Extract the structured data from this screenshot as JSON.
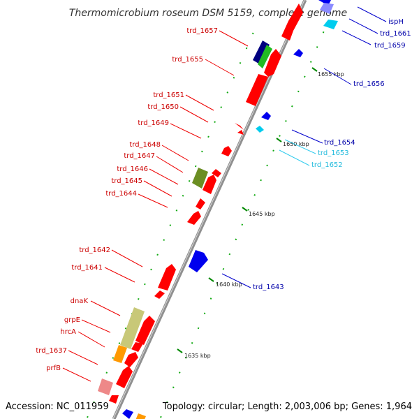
{
  "title": "Thermomicrobium roseum DSM 5159, complete genome",
  "footer": {
    "accession": "Accession: NC_011959",
    "summary": "Topology: circular; Length: 2,003,006 bp; Genes: 1,964"
  },
  "colors": {
    "background": "#ffffff",
    "backbone": "#909090",
    "forward_gene": "#ff0000",
    "reverse_gene": "#0000ee",
    "reverse_gene_light": "#00ccee",
    "label_forward": "#cc0000",
    "label_reverse": "#0000aa",
    "label_reverse_light": "#22bbdd",
    "tick_mark": "#008800",
    "olive_feature": "#6b8e23",
    "khaki_feature": "#c8c878",
    "orange_feature": "#ff9900",
    "pink_feature": "#ee8888",
    "navy_feature": "#000080",
    "green_feature": "#22bb22"
  },
  "scale_labels": [
    "1655 kbp",
    "1650 kbp",
    "1645 kbp",
    "1640 kbp",
    "1635 kbp"
  ],
  "gene_labels": {
    "forward": [
      "trd_1657",
      "trd_1655",
      "trd_1651",
      "trd_1650",
      "trd_1649",
      "trd_1648",
      "trd_1647",
      "trd_1646",
      "trd_1645",
      "trd_1644",
      "trd_1642",
      "trd_1641",
      "dnaK",
      "grpE",
      "hrcA",
      "trd_1637",
      "prfB"
    ],
    "reverse": [
      "ispH",
      "trd_1661",
      "trd_1659",
      "trd_1656",
      "trd_1654",
      "trd_1643"
    ],
    "reverse_light": [
      "trd_1653",
      "trd_1652"
    ]
  }
}
